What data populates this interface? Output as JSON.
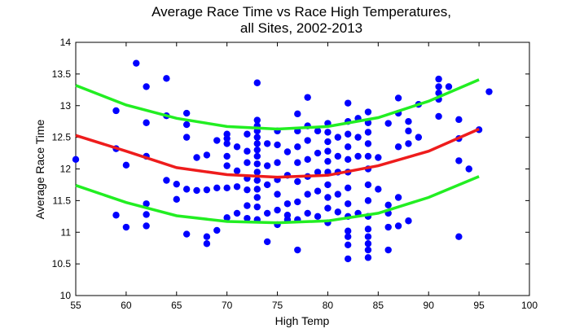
{
  "chart_data": {
    "type": "scatter",
    "title_line1": "Average Race Time vs Race High Temperatures,",
    "title_line2": "all Sites, 2002-2013",
    "xlabel": "High Temp",
    "ylabel": "Average Race Time",
    "xlim": [
      55,
      100
    ],
    "ylim": [
      10,
      14
    ],
    "x_ticks": [
      55,
      60,
      65,
      70,
      75,
      80,
      85,
      90,
      95,
      100
    ],
    "y_ticks": [
      10,
      10.5,
      11,
      11.5,
      12,
      12.5,
      13,
      13.5,
      14
    ],
    "grid": false,
    "colors": {
      "points": "#0000ff",
      "fit": "#ee1c1c",
      "bounds": "#22ee22"
    },
    "points": [
      [
        55,
        12.15
      ],
      [
        59,
        12.92
      ],
      [
        59,
        12.32
      ],
      [
        59,
        11.27
      ],
      [
        60,
        12.06
      ],
      [
        60,
        11.08
      ],
      [
        61,
        13.67
      ],
      [
        62,
        13.3
      ],
      [
        62,
        12.73
      ],
      [
        62,
        12.2
      ],
      [
        62,
        11.45
      ],
      [
        62,
        11.28
      ],
      [
        62,
        11.1
      ],
      [
        64,
        13.43
      ],
      [
        64,
        12.84
      ],
      [
        64,
        11.82
      ],
      [
        65,
        11.76
      ],
      [
        65,
        11.52
      ],
      [
        66,
        12.88
      ],
      [
        66,
        12.7
      ],
      [
        66,
        12.5
      ],
      [
        66,
        11.68
      ],
      [
        66,
        10.97
      ],
      [
        67,
        12.18
      ],
      [
        67,
        11.66
      ],
      [
        68,
        12.22
      ],
      [
        68,
        11.67
      ],
      [
        68,
        10.93
      ],
      [
        68,
        10.82
      ],
      [
        69,
        12.45
      ],
      [
        69,
        11.7
      ],
      [
        69,
        11.03
      ],
      [
        70,
        12.55
      ],
      [
        70,
        12.48
      ],
      [
        70,
        12.4
      ],
      [
        70,
        12.2
      ],
      [
        70,
        12.05
      ],
      [
        70,
        11.7
      ],
      [
        70,
        11.23
      ],
      [
        71,
        12.35
      ],
      [
        71,
        11.97
      ],
      [
        71,
        11.72
      ],
      [
        71,
        11.3
      ],
      [
        72,
        12.55
      ],
      [
        72,
        12.28
      ],
      [
        72,
        12.1
      ],
      [
        72,
        11.85
      ],
      [
        72,
        11.67
      ],
      [
        72,
        11.42
      ],
      [
        72,
        11.22
      ],
      [
        73,
        13.36
      ],
      [
        73,
        12.77
      ],
      [
        73,
        12.68
      ],
      [
        73,
        12.6
      ],
      [
        73,
        12.5
      ],
      [
        73,
        12.4
      ],
      [
        73,
        12.3
      ],
      [
        73,
        12.2
      ],
      [
        73,
        12.08
      ],
      [
        73,
        11.95
      ],
      [
        73,
        11.82
      ],
      [
        73,
        11.68
      ],
      [
        73,
        11.55
      ],
      [
        73,
        11.4
      ],
      [
        73,
        11.2
      ],
      [
        74,
        12.4
      ],
      [
        74,
        12.05
      ],
      [
        74,
        11.75
      ],
      [
        74,
        11.3
      ],
      [
        74,
        10.85
      ],
      [
        75,
        12.6
      ],
      [
        75,
        12.38
      ],
      [
        75,
        12.1
      ],
      [
        75,
        11.83
      ],
      [
        75,
        11.6
      ],
      [
        75,
        11.35
      ],
      [
        75,
        11.12
      ],
      [
        76,
        12.27
      ],
      [
        76,
        11.9
      ],
      [
        76,
        11.45
      ],
      [
        76,
        11.27
      ],
      [
        76,
        11.2
      ],
      [
        77,
        12.87
      ],
      [
        77,
        12.6
      ],
      [
        77,
        12.35
      ],
      [
        77,
        12.1
      ],
      [
        77,
        11.8
      ],
      [
        77,
        11.48
      ],
      [
        77,
        11.2
      ],
      [
        77,
        10.72
      ],
      [
        78,
        13.13
      ],
      [
        78,
        12.68
      ],
      [
        78,
        12.45
      ],
      [
        78,
        12.15
      ],
      [
        78,
        11.88
      ],
      [
        78,
        11.6
      ],
      [
        78,
        11.3
      ],
      [
        79,
        12.6
      ],
      [
        79,
        12.25
      ],
      [
        79,
        11.95
      ],
      [
        79,
        11.65
      ],
      [
        79,
        11.25
      ],
      [
        80,
        12.72
      ],
      [
        80,
        12.58
      ],
      [
        80,
        12.43
      ],
      [
        80,
        12.28
      ],
      [
        80,
        12.12
      ],
      [
        80,
        11.95
      ],
      [
        80,
        11.75
      ],
      [
        80,
        11.55
      ],
      [
        80,
        11.38
      ],
      [
        80,
        11.15
      ],
      [
        81,
        12.5
      ],
      [
        81,
        12.2
      ],
      [
        81,
        11.95
      ],
      [
        81,
        11.6
      ],
      [
        81,
        11.32
      ],
      [
        82,
        13.04
      ],
      [
        82,
        12.75
      ],
      [
        82,
        12.55
      ],
      [
        82,
        12.35
      ],
      [
        82,
        12.15
      ],
      [
        82,
        11.95
      ],
      [
        82,
        11.7
      ],
      [
        82,
        11.45
      ],
      [
        82,
        11.25
      ],
      [
        82,
        11.02
      ],
      [
        82,
        10.93
      ],
      [
        82,
        10.8
      ],
      [
        82,
        10.58
      ],
      [
        83,
        12.8
      ],
      [
        83,
        12.5
      ],
      [
        83,
        12.2
      ],
      [
        83,
        11.3
      ],
      [
        84,
        12.9
      ],
      [
        84,
        12.73
      ],
      [
        84,
        12.58
      ],
      [
        84,
        12.4
      ],
      [
        84,
        12.2
      ],
      [
        84,
        12.0
      ],
      [
        84,
        11.75
      ],
      [
        84,
        11.5
      ],
      [
        84,
        11.25
      ],
      [
        84,
        11.05
      ],
      [
        84,
        10.93
      ],
      [
        84,
        10.82
      ],
      [
        84,
        10.72
      ],
      [
        84,
        10.6
      ],
      [
        85,
        12.18
      ],
      [
        85,
        11.68
      ],
      [
        86,
        12.72
      ],
      [
        86,
        11.43
      ],
      [
        86,
        11.3
      ],
      [
        86,
        11.08
      ],
      [
        86,
        10.72
      ],
      [
        87,
        13.12
      ],
      [
        87,
        12.88
      ],
      [
        87,
        12.35
      ],
      [
        87,
        11.55
      ],
      [
        87,
        11.1
      ],
      [
        88,
        12.75
      ],
      [
        88,
        12.6
      ],
      [
        88,
        12.4
      ],
      [
        88,
        11.18
      ],
      [
        89,
        13.02
      ],
      [
        89,
        12.5
      ],
      [
        91,
        13.42
      ],
      [
        91,
        13.3
      ],
      [
        91,
        13.2
      ],
      [
        91,
        13.1
      ],
      [
        91,
        12.83
      ],
      [
        92,
        13.3
      ],
      [
        93,
        12.78
      ],
      [
        93,
        12.48
      ],
      [
        93,
        12.13
      ],
      [
        93,
        10.93
      ],
      [
        94,
        12.0
      ],
      [
        95,
        12.62
      ],
      [
        96,
        13.22
      ]
    ],
    "fit_line": [
      [
        55,
        12.53
      ],
      [
        60,
        12.28
      ],
      [
        65,
        12.02
      ],
      [
        70,
        11.91
      ],
      [
        75,
        11.87
      ],
      [
        80,
        11.9
      ],
      [
        85,
        12.05
      ],
      [
        90,
        12.28
      ],
      [
        95,
        12.63
      ]
    ],
    "upper_bound": [
      [
        55,
        13.32
      ],
      [
        60,
        13.01
      ],
      [
        65,
        12.8
      ],
      [
        70,
        12.67
      ],
      [
        75,
        12.63
      ],
      [
        80,
        12.67
      ],
      [
        85,
        12.81
      ],
      [
        90,
        13.07
      ],
      [
        95,
        13.41
      ]
    ],
    "lower_bound": [
      [
        55,
        11.74
      ],
      [
        60,
        11.47
      ],
      [
        65,
        11.26
      ],
      [
        70,
        11.17
      ],
      [
        75,
        11.15
      ],
      [
        80,
        11.18
      ],
      [
        85,
        11.3
      ],
      [
        90,
        11.55
      ],
      [
        95,
        11.88
      ]
    ]
  }
}
